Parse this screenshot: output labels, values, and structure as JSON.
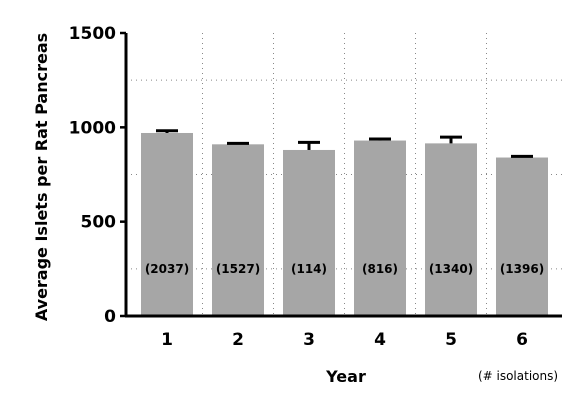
{
  "chart_data": {
    "type": "bar",
    "categories": [
      "1",
      "2",
      "3",
      "4",
      "5",
      "6"
    ],
    "values": [
      970,
      910,
      880,
      930,
      915,
      840
    ],
    "error": [
      12,
      5,
      40,
      8,
      33,
      6
    ],
    "bar_labels": [
      "(2037)",
      "(1527)",
      "(114)",
      "(816)",
      "(1340)",
      "(1396)"
    ],
    "title": "",
    "xlabel": "Year",
    "ylabel": "Average Islets per Rat Pancreas",
    "x_note": "(# isolations)",
    "yticks": [
      "0",
      "500",
      "1000",
      "1500"
    ],
    "ylim": [
      0,
      1500
    ],
    "grid": true,
    "colors": {
      "bar": "#a6a6a6",
      "axis": "#000000",
      "grid": "#888888"
    }
  }
}
